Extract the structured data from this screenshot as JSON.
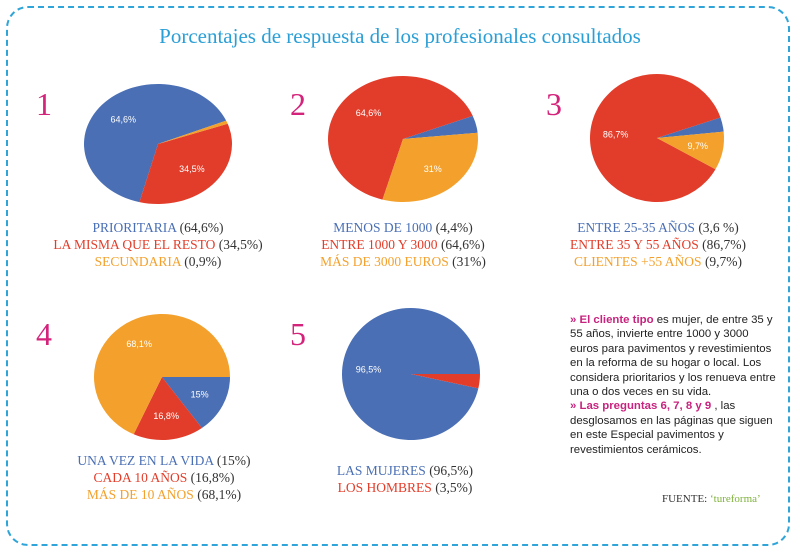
{
  "title": "Porcentajes de respuesta de los profesionales consultados",
  "colors": {
    "blue": "#4a6fb5",
    "red": "#e23d2a",
    "orange": "#f3a12c",
    "accent": "#d4237b",
    "frame": "#2fa4d8"
  },
  "chart_data": [
    {
      "type": "pie",
      "number": "1",
      "slices": [
        {
          "name": "PRIORITARIA",
          "value": 64.6,
          "pct_text": "(64,6%)",
          "label": "64,6%",
          "color": "#4a6fb5"
        },
        {
          "name": "LA MISMA QUE EL RESTO",
          "value": 34.5,
          "pct_text": "(34,5%)",
          "label": "34,5%",
          "color": "#e23d2a"
        },
        {
          "name": "SECUNDARIA",
          "value": 0.9,
          "pct_text": "(0,9%)",
          "label": "",
          "color": "#f3a12c"
        }
      ]
    },
    {
      "type": "pie",
      "number": "2",
      "slices": [
        {
          "name": "MENOS DE 1000",
          "value": 4.4,
          "pct_text": "(4,4%)",
          "label": "",
          "color": "#4a6fb5"
        },
        {
          "name": "ENTRE 1000 Y 3000",
          "value": 64.6,
          "pct_text": "(64,6%)",
          "label": "64,6%",
          "color": "#e23d2a"
        },
        {
          "name": "MÁS DE 3000 EUROS",
          "value": 31,
          "pct_text": "(31%)",
          "label": "31%",
          "color": "#f3a12c"
        }
      ]
    },
    {
      "type": "pie",
      "number": "3",
      "slices": [
        {
          "name": "ENTRE 25-35 AÑOS",
          "value": 3.6,
          "pct_text": "(3,6 %)",
          "label": "",
          "color": "#4a6fb5"
        },
        {
          "name": "ENTRE 35 Y 55 AÑOS",
          "value": 86.7,
          "pct_text": "(86,7%)",
          "label": "86,7%",
          "color": "#e23d2a"
        },
        {
          "name": "CLIENTES +55 AÑOS",
          "value": 9.7,
          "pct_text": "(9,7%)",
          "label": "9,7%",
          "color": "#f3a12c"
        }
      ]
    },
    {
      "type": "pie",
      "number": "4",
      "slices": [
        {
          "name": "UNA VEZ EN LA VIDA",
          "value": 15,
          "pct_text": "(15%)",
          "label": "15%",
          "color": "#4a6fb5"
        },
        {
          "name": "CADA 10 AÑOS",
          "value": 16.8,
          "pct_text": "(16,8%)",
          "label": "16,8%",
          "color": "#e23d2a"
        },
        {
          "name": "MÁS DE 10 AÑOS",
          "value": 68.1,
          "pct_text": "(68,1%)",
          "label": "68,1%",
          "color": "#f3a12c"
        }
      ]
    },
    {
      "type": "pie",
      "number": "5",
      "slices": [
        {
          "name": "LAS MUJERES",
          "value": 96.5,
          "pct_text": "(96,5%)",
          "label": "96,5%",
          "color": "#4a6fb5"
        },
        {
          "name": "LOS HOMBRES",
          "value": 3.5,
          "pct_text": "(3,5%)",
          "label": "",
          "color": "#e23d2a"
        }
      ]
    }
  ],
  "note": {
    "p1_highlight": "» El cliente tipo",
    "p1_text": " es mujer, de entre 35 y 55 años, invierte entre 1000 y 3000 euros para pavimentos y revestimientos en la reforma de su hogar o local. Los considera prioritarios y los renueva entre una o dos veces en su vida.",
    "p2_highlight": "» Las preguntas 6, 7, 8 y 9",
    "p2_text": " , las desglosamos en las páginas que siguen en este Especial pavimentos y revestimientos cerámicos."
  },
  "source": {
    "label": "FUENTE: ",
    "brand": "‘tureforma’"
  }
}
